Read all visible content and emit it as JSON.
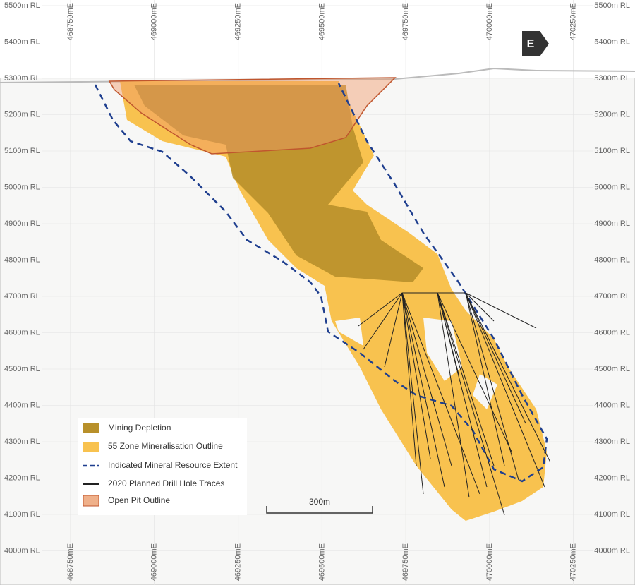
{
  "rl_labels": [
    "5500m RL",
    "5400m RL",
    "5300m RL",
    "5200m RL",
    "5100m RL",
    "5000m RL",
    "4900m RL",
    "4800m RL",
    "4700m RL",
    "4600m RL",
    "4500m RL",
    "4400m RL",
    "4300m RL",
    "4200m RL",
    "4100m RL",
    "4000m RL"
  ],
  "easting_labels": [
    "468750mE",
    "469000mE",
    "469250mE",
    "469500mE",
    "469750mE",
    "470000mE",
    "470250mE"
  ],
  "direction": "E",
  "legend": [
    "Mining Depletion",
    "55 Zone Mineralisation Outline",
    "Indicated Mineral Resource Extent",
    "2020 Planned Drill Hole Traces",
    "Open Pit Outline"
  ],
  "scale_bar": "300m"
}
